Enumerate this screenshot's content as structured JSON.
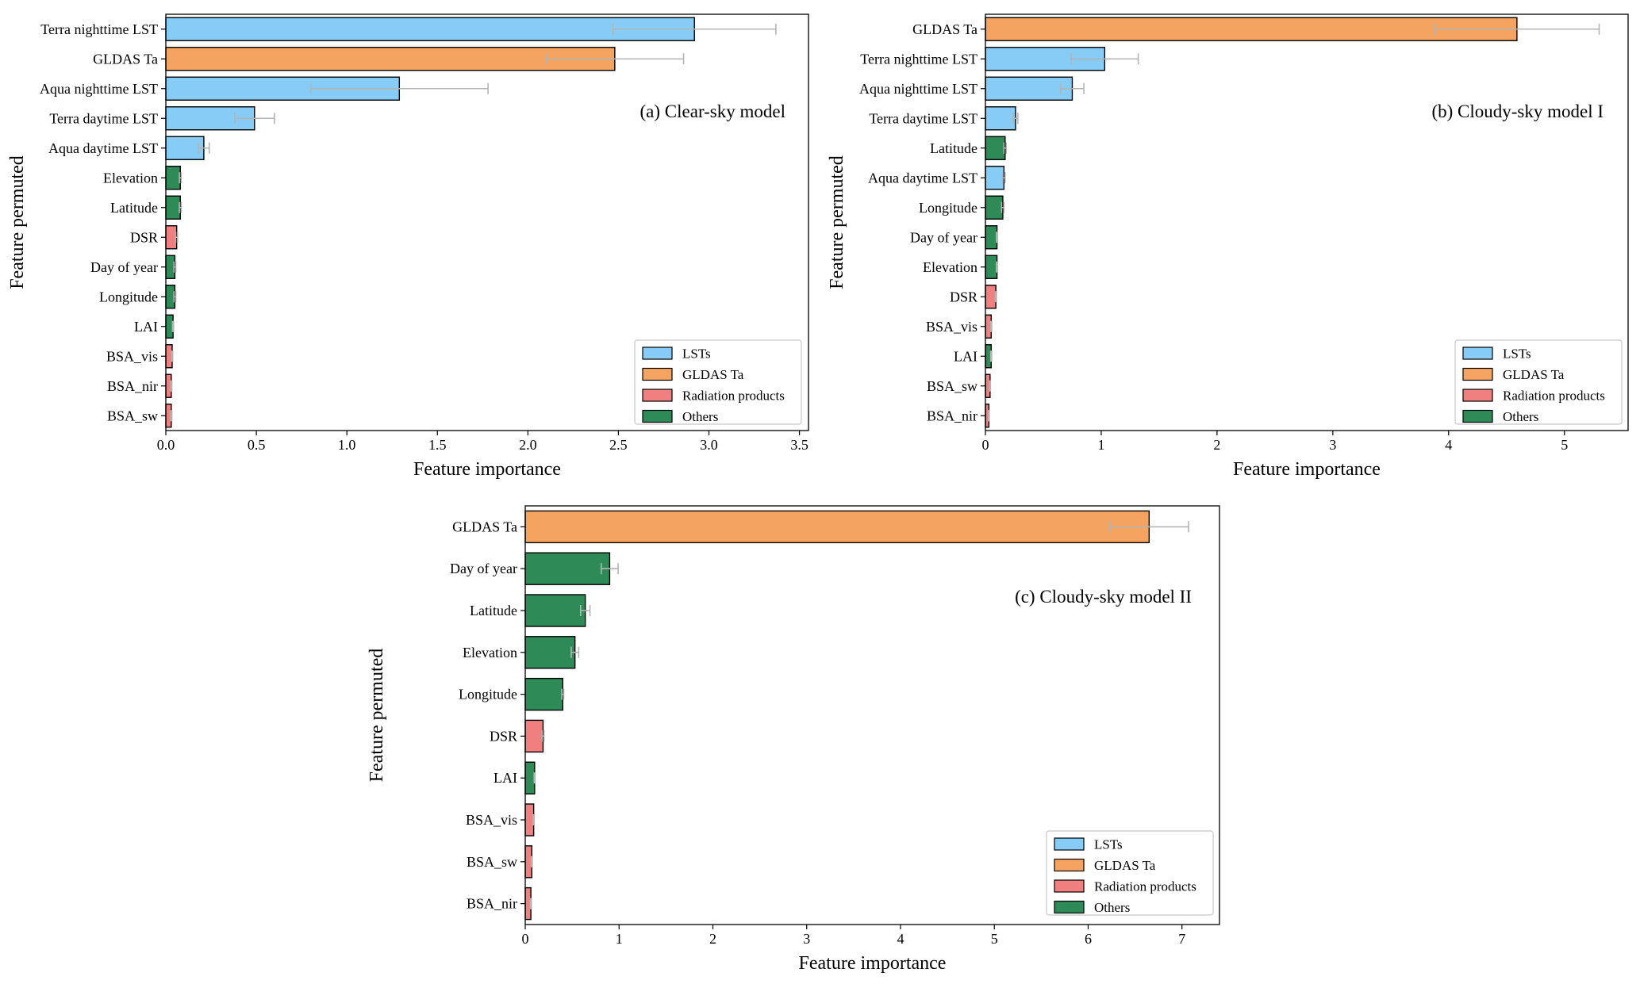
{
  "figure": {
    "categories": {
      "LSTs": {
        "label": "LSTs",
        "color": "#87ccf6"
      },
      "GLDAS": {
        "label": "GLDAS Ta",
        "color": "#f4a460"
      },
      "Radiation": {
        "label": "Radiation products",
        "color": "#f08080"
      },
      "Others": {
        "label": "Others",
        "color": "#2e8b57"
      }
    },
    "legend_order": [
      "LSTs",
      "GLDAS",
      "Radiation",
      "Others"
    ],
    "error_bar_color": "#b4b4b4",
    "bar_edge_color": "#000000"
  },
  "chart_data": [
    {
      "type": "bar",
      "orientation": "horizontal",
      "title": "(a) Clear-sky model",
      "xlabel": "Feature importance",
      "ylabel": "Feature permuted",
      "xlim": [
        0,
        3.55
      ],
      "xticks": [
        0.0,
        0.5,
        1.0,
        1.5,
        2.0,
        2.5,
        3.0,
        3.5
      ],
      "xtick_labels": [
        "0.0",
        "0.5",
        "1.0",
        "1.5",
        "2.0",
        "2.5",
        "3.0",
        "3.5"
      ],
      "legend_position": "lower-right",
      "categories": [
        "Terra nighttime LST",
        "GLDAS Ta",
        "Aqua nighttime LST",
        "Terra daytime LST",
        "Aqua daytime LST",
        "Elevation",
        "Latitude",
        "DSR",
        "Day of year",
        "Longitude",
        "LAI",
        "BSA_vis",
        "BSA_nir",
        "BSA_sw"
      ],
      "values": [
        2.92,
        2.48,
        1.29,
        0.49,
        0.21,
        0.08,
        0.08,
        0.06,
        0.05,
        0.05,
        0.04,
        0.035,
        0.03,
        0.03
      ],
      "errors": [
        0.45,
        0.38,
        0.49,
        0.11,
        0.03,
        0.005,
        0.005,
        0.005,
        0.005,
        0.005,
        0.003,
        0.003,
        0.003,
        0.003
      ],
      "groups": [
        "LSTs",
        "GLDAS",
        "LSTs",
        "LSTs",
        "LSTs",
        "Others",
        "Others",
        "Radiation",
        "Others",
        "Others",
        "Others",
        "Radiation",
        "Radiation",
        "Radiation"
      ]
    },
    {
      "type": "bar",
      "orientation": "horizontal",
      "title": "(b) Cloudy-sky model I",
      "xlabel": "Feature importance",
      "ylabel": "Feature permuted",
      "xlim": [
        0,
        5.55
      ],
      "xticks": [
        0,
        1,
        2,
        3,
        4,
        5
      ],
      "xtick_labels": [
        "0",
        "1",
        "2",
        "3",
        "4",
        "5"
      ],
      "legend_position": "lower-right",
      "categories": [
        "GLDAS Ta",
        "Terra nighttime LST",
        "Aqua nighttime LST",
        "Terra daytime LST",
        "Latitude",
        "Aqua daytime LST",
        "Longitude",
        "Day of year",
        "Elevation",
        "DSR",
        "BSA_vis",
        "LAI",
        "BSA_sw",
        "BSA_nir"
      ],
      "values": [
        4.59,
        1.03,
        0.75,
        0.26,
        0.17,
        0.16,
        0.15,
        0.1,
        0.1,
        0.09,
        0.05,
        0.05,
        0.04,
        0.03
      ],
      "errors": [
        0.71,
        0.29,
        0.1,
        0.02,
        0.01,
        0.01,
        0.01,
        0.005,
        0.005,
        0.005,
        0.004,
        0.004,
        0.003,
        0.003
      ],
      "groups": [
        "GLDAS",
        "LSTs",
        "LSTs",
        "LSTs",
        "Others",
        "LSTs",
        "Others",
        "Others",
        "Others",
        "Radiation",
        "Radiation",
        "Others",
        "Radiation",
        "Radiation"
      ]
    },
    {
      "type": "bar",
      "orientation": "horizontal",
      "title": "(c) Cloudy-sky model II",
      "xlabel": "Feature importance",
      "ylabel": "Feature permuted",
      "xlim": [
        0,
        7.4
      ],
      "xticks": [
        0,
        1,
        2,
        3,
        4,
        5,
        6,
        7
      ],
      "xtick_labels": [
        "0",
        "1",
        "2",
        "3",
        "4",
        "5",
        "6",
        "7"
      ],
      "legend_position": "lower-right",
      "categories": [
        "GLDAS Ta",
        "Day of year",
        "Latitude",
        "Elevation",
        "Longitude",
        "DSR",
        "LAI",
        "BSA_vis",
        "BSA_sw",
        "BSA_nir"
      ],
      "values": [
        6.65,
        0.9,
        0.64,
        0.53,
        0.4,
        0.19,
        0.1,
        0.09,
        0.07,
        0.06
      ],
      "errors": [
        0.42,
        0.09,
        0.05,
        0.04,
        0.01,
        0.01,
        0.005,
        0.005,
        0.005,
        0.005
      ],
      "groups": [
        "GLDAS",
        "Others",
        "Others",
        "Others",
        "Others",
        "Radiation",
        "Others",
        "Radiation",
        "Radiation",
        "Radiation"
      ]
    }
  ]
}
